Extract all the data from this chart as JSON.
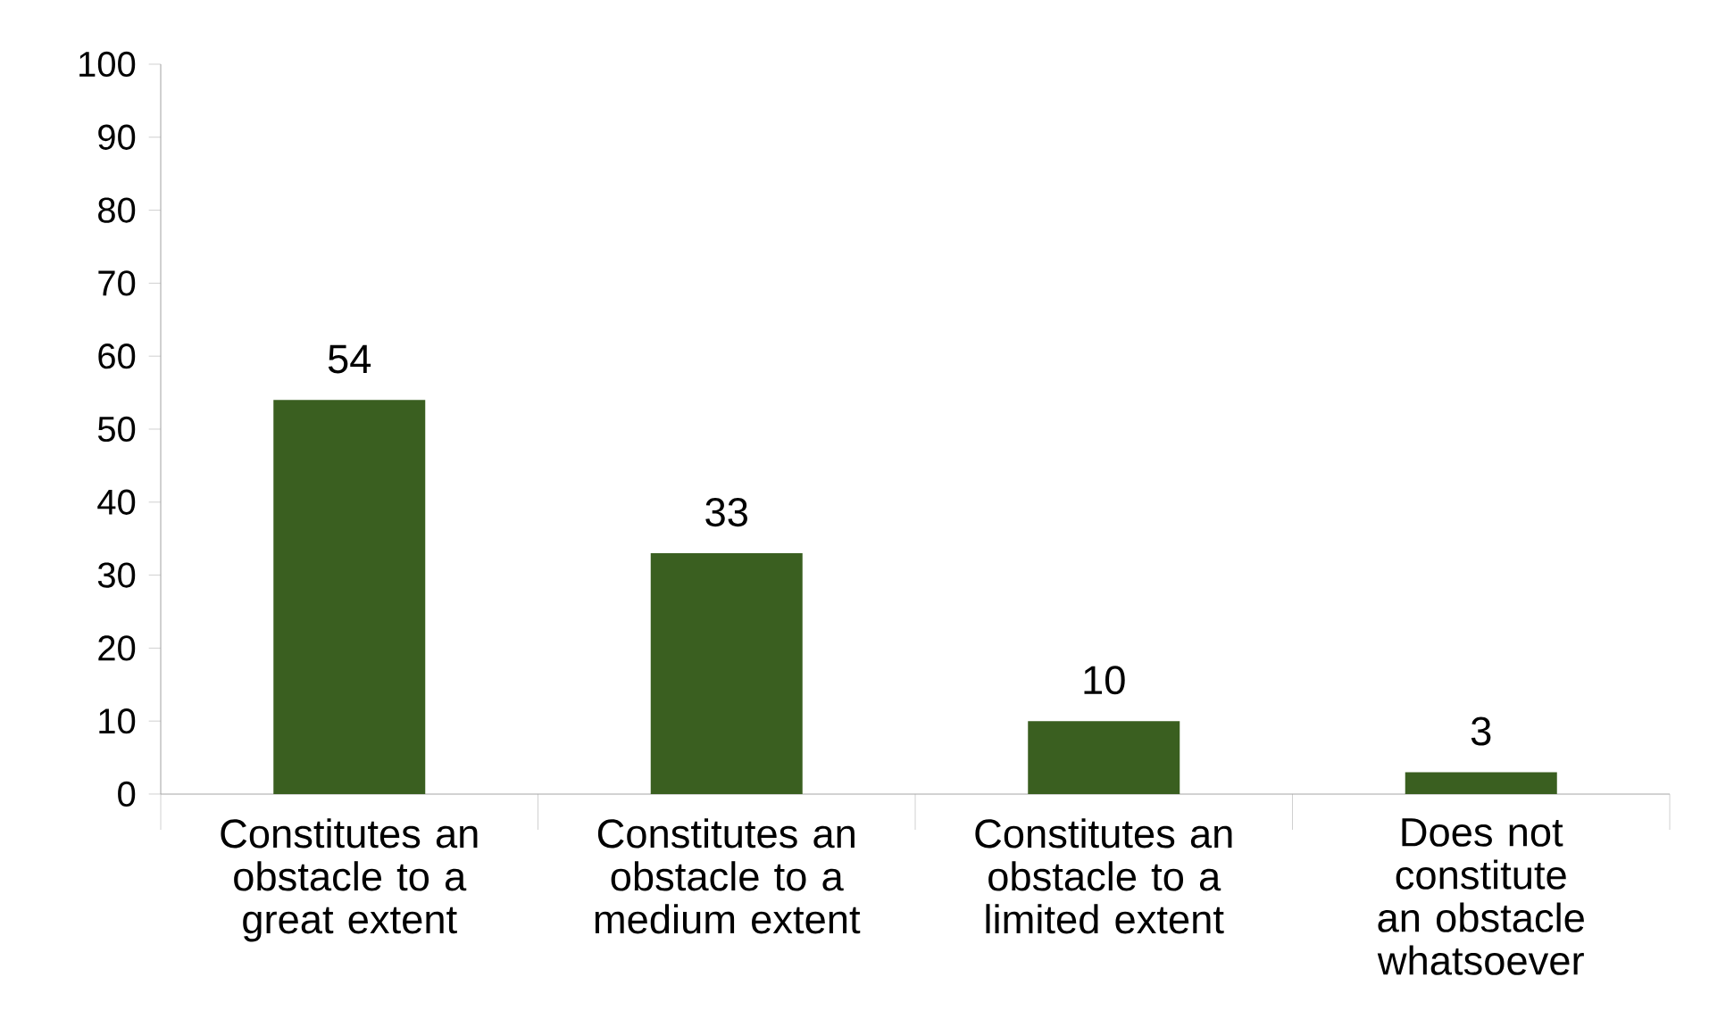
{
  "chart_data": {
    "type": "bar",
    "categories": [
      "Constitutes an obstacle to a great extent",
      "Constitutes an obstacle to a medium extent",
      "Constitutes an obstacle to a limited extent",
      "Does not constitute an obstacle whatsoever"
    ],
    "values": [
      54,
      33,
      10,
      3
    ],
    "color": "#3a5f20",
    "ylim": [
      0,
      100
    ],
    "yticks": [
      0,
      10,
      20,
      30,
      40,
      50,
      60,
      70,
      80,
      90,
      100
    ],
    "data_labels": true
  }
}
